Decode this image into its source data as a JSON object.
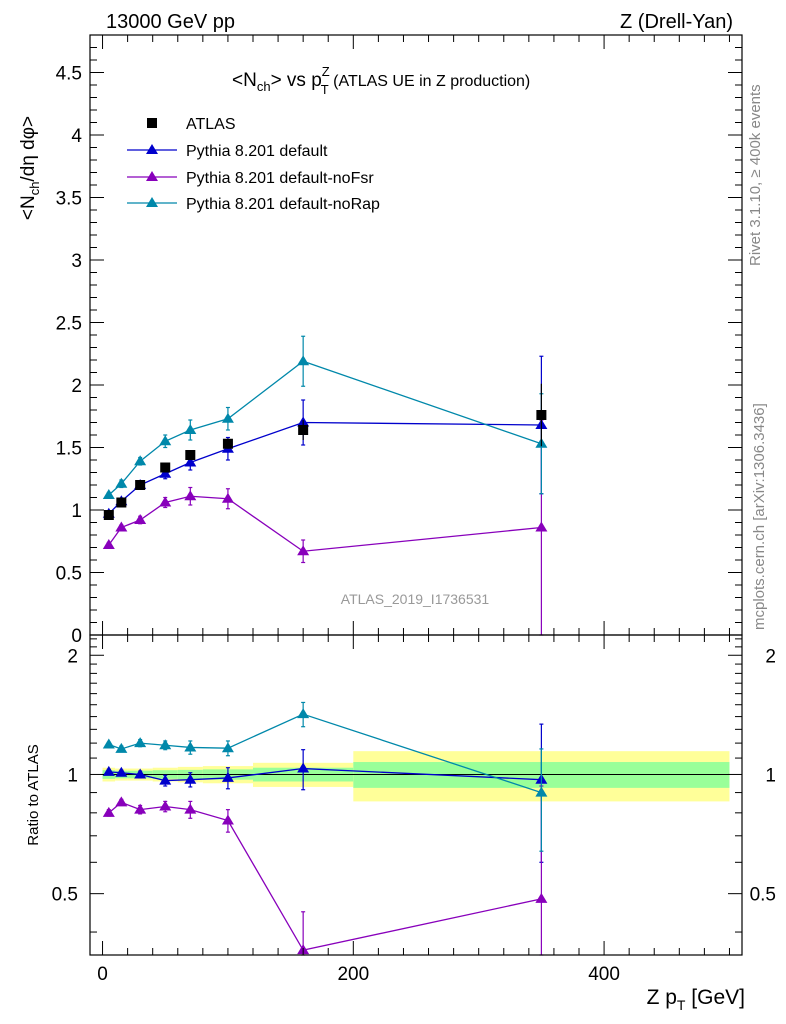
{
  "header": {
    "left": "13000 GeV pp",
    "right": "Z (Drell-Yan)"
  },
  "side": {
    "rivet": "Rivet 3.1.10, ≥ 400k events",
    "mcplots": "mcplots.cern.ch [arXiv:1306.3436]"
  },
  "watermark": "ATLAS_2019_I1736531",
  "colors": {
    "atlas": "#000000",
    "default": "#0000cc",
    "noFsr": "#8800bb",
    "noRap": "#0088aa",
    "band_inner": "#99ff99",
    "band_outer": "#ffff99"
  },
  "chart_data": {
    "type": "scatter",
    "title": {
      "main": "<N",
      "sub1": "ch",
      "mid": "> vs p",
      "sup": "Z",
      "sub2": "T",
      "rest": " (ATLAS UE in Z production)"
    },
    "ylabel": {
      "a": "<N",
      "sub": "ch",
      "b": "/dη dφ>"
    },
    "ratio_ylabel": "Ratio to ATLAS",
    "xlabel": {
      "a": "Z p",
      "sub": "T",
      "b": " [GeV]"
    },
    "xlim": [
      -10,
      510
    ],
    "ylim": [
      0,
      4.8
    ],
    "ratio_ylim": [
      0.35,
      2.25
    ],
    "x_ticks": [
      {
        "v": 0,
        "label": "0"
      },
      {
        "v": 200,
        "label": "200"
      },
      {
        "v": 400,
        "label": "400"
      }
    ],
    "y_ticks": [
      {
        "v": 0,
        "label": "0"
      },
      {
        "v": 0.5,
        "label": "0.5"
      },
      {
        "v": 1,
        "label": "1"
      },
      {
        "v": 1.5,
        "label": "1.5"
      },
      {
        "v": 2,
        "label": "2"
      },
      {
        "v": 2.5,
        "label": "2.5"
      },
      {
        "v": 3,
        "label": "3"
      },
      {
        "v": 3.5,
        "label": "3.5"
      },
      {
        "v": 4,
        "label": "4"
      },
      {
        "v": 4.5,
        "label": "4.5"
      }
    ],
    "ratio_ticks": [
      {
        "v": 0.5,
        "label": "0.5"
      },
      {
        "v": 1,
        "label": "1"
      },
      {
        "v": 2,
        "label": "2"
      }
    ],
    "bands": [
      {
        "x0": 0,
        "x1": 10,
        "inner": 0.025,
        "outer": 0.04
      },
      {
        "x0": 10,
        "x1": 20,
        "inner": 0.022,
        "outer": 0.035
      },
      {
        "x0": 20,
        "x1": 40,
        "inner": 0.022,
        "outer": 0.035
      },
      {
        "x0": 40,
        "x1": 60,
        "inner": 0.025,
        "outer": 0.04
      },
      {
        "x0": 60,
        "x1": 80,
        "inner": 0.027,
        "outer": 0.045
      },
      {
        "x0": 80,
        "x1": 120,
        "inner": 0.03,
        "outer": 0.05
      },
      {
        "x0": 120,
        "x1": 200,
        "inner": 0.04,
        "outer": 0.07
      },
      {
        "x0": 200,
        "x1": 500,
        "inner": 0.075,
        "outer": 0.145
      }
    ],
    "legend": [
      {
        "key": "atlas",
        "label": "ATLAS"
      },
      {
        "key": "default",
        "label": "Pythia 8.201 default"
      },
      {
        "key": "noFsr",
        "label": "Pythia 8.201 default-noFsr"
      },
      {
        "key": "noRap",
        "label": "Pythia 8.201 default-noRap"
      }
    ],
    "data_series": {
      "x": [
        5,
        15,
        30,
        50,
        70,
        100,
        160,
        350
      ],
      "y": [
        0.96,
        1.06,
        1.2,
        1.34,
        1.44,
        1.53,
        1.64,
        1.76
      ],
      "yerr": [
        0.01,
        0.01,
        0.01,
        0.02,
        0.02,
        0.04,
        0.08,
        0.25
      ]
    },
    "series": [
      {
        "key": "default",
        "name": "Pythia 8.201 default",
        "y": [
          0.97,
          1.07,
          1.2,
          1.29,
          1.38,
          1.49,
          1.7,
          1.68
        ],
        "yerr": [
          0.02,
          0.02,
          0.03,
          0.04,
          0.06,
          0.09,
          0.18,
          0.55
        ],
        "ratio": [
          1.015,
          1.01,
          1.0,
          0.965,
          0.97,
          0.98,
          1.035,
          0.97
        ],
        "ratio_err": [
          0.015,
          0.015,
          0.02,
          0.03,
          0.04,
          0.06,
          0.12,
          0.37
        ]
      },
      {
        "key": "noFsr",
        "name": "Pythia 8.201 default-noFsr",
        "y": [
          0.72,
          0.86,
          0.92,
          1.06,
          1.11,
          1.09,
          0.67,
          0.86
        ],
        "yerr": [
          0.02,
          0.02,
          0.03,
          0.04,
          0.07,
          0.08,
          0.09,
          0.86
        ],
        "ratio": [
          0.8,
          0.85,
          0.815,
          0.83,
          0.815,
          0.765,
          0.36,
          0.485
        ],
        "ratio_err": [
          0.015,
          0.015,
          0.02,
          0.025,
          0.04,
          0.05,
          0.09,
          0.45
        ]
      },
      {
        "key": "noRap",
        "name": "Pythia 8.201 default-noRap",
        "y": [
          1.12,
          1.21,
          1.39,
          1.55,
          1.64,
          1.73,
          2.19,
          1.53
        ],
        "yerr": [
          0.02,
          0.03,
          0.03,
          0.05,
          0.08,
          0.09,
          0.2,
          0.4
        ],
        "ratio": [
          1.19,
          1.16,
          1.2,
          1.185,
          1.17,
          1.165,
          1.42,
          0.9
        ],
        "ratio_err": [
          0.015,
          0.02,
          0.025,
          0.03,
          0.045,
          0.05,
          0.1,
          0.26
        ]
      }
    ]
  }
}
